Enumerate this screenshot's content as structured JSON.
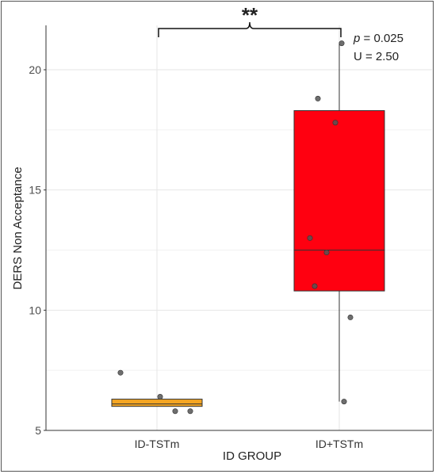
{
  "chart_data": {
    "type": "box",
    "xlabel": "ID GROUP",
    "ylabel": "DERS Non Acceptance",
    "ylim": [
      5,
      22
    ],
    "y_ticks": [
      5,
      10,
      15,
      20
    ],
    "grid": true,
    "categories": [
      "ID-TSTm",
      "ID+TSTm"
    ],
    "boxes": [
      {
        "category": "ID-TSTm",
        "color": "#F5A623",
        "whisker_low": 6.0,
        "q1": 6.0,
        "median": 6.1,
        "q3": 6.3,
        "whisker_high": 6.3,
        "points": [
          7.4,
          6.4,
          5.8,
          5.8
        ]
      },
      {
        "category": "ID+TSTm",
        "color": "#FF0010",
        "whisker_low": 6.2,
        "q1": 10.8,
        "median": 12.5,
        "q3": 18.3,
        "whisker_high": 21.1,
        "points": [
          21.1,
          18.8,
          17.8,
          13.0,
          12.4,
          11.0,
          9.7,
          6.2
        ]
      }
    ],
    "annotation": {
      "significance": "**",
      "p_label": "p",
      "p_value": " = 0.025",
      "u_label": "U = 2.50"
    }
  }
}
